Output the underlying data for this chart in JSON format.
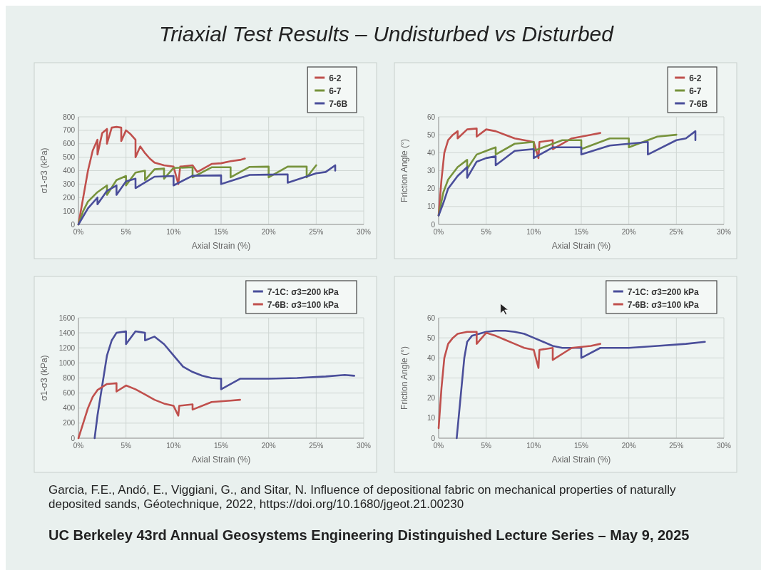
{
  "chart_data": [
    {
      "type": "line",
      "title": "Triaxial Test Results – Undisturbed vs Disturbed",
      "xlabel": "Axial Strain (%)",
      "ylabel": "σ1-σ3 (kPa)",
      "xlim": [
        0,
        30
      ],
      "xticks": [
        {
          "value": 0,
          "label": "0%"
        },
        {
          "value": 5,
          "label": "5%"
        },
        {
          "value": 10,
          "label": "10%"
        },
        {
          "value": 15,
          "label": "15%"
        },
        {
          "value": 20,
          "label": "20%"
        },
        {
          "value": 25,
          "label": "25%"
        },
        {
          "value": 30,
          "label": "30%"
        }
      ],
      "ylim": [
        0,
        800
      ],
      "yticks": [
        0,
        100,
        200,
        300,
        400,
        500,
        600,
        700,
        800
      ],
      "grid": true,
      "legend": "top right",
      "series": [
        {
          "name": "6-2",
          "color": "#c0504d",
          "x": [
            0,
            0.5,
            1,
            1.5,
            2,
            2,
            2.5,
            3,
            3,
            3.5,
            4,
            4.5,
            4.5,
            5,
            5.5,
            6,
            6,
            6.5,
            7,
            7.5,
            8,
            9,
            10,
            10.5,
            10.7,
            12,
            12.5,
            14,
            15,
            16,
            17,
            17.5
          ],
          "values": [
            0,
            200,
            400,
            550,
            630,
            520,
            680,
            710,
            600,
            720,
            725,
            720,
            620,
            700,
            670,
            630,
            500,
            580,
            530,
            490,
            460,
            440,
            430,
            300,
            430,
            440,
            390,
            450,
            455,
            470,
            480,
            490
          ]
        },
        {
          "name": "6-7",
          "color": "#77933c",
          "x": [
            0,
            0.5,
            1,
            2,
            3,
            3,
            4,
            5,
            5,
            6,
            7,
            7,
            8,
            9,
            9,
            10,
            12,
            12,
            14,
            15,
            16,
            16,
            18,
            20,
            20,
            22,
            24,
            24,
            25
          ],
          "values": [
            0,
            100,
            170,
            240,
            290,
            220,
            330,
            360,
            290,
            385,
            400,
            330,
            410,
            415,
            340,
            420,
            425,
            350,
            425,
            425,
            425,
            350,
            428,
            430,
            350,
            430,
            430,
            350,
            440
          ]
        },
        {
          "name": "7-6B",
          "color": "#4a4e9a",
          "x": [
            0,
            1,
            2,
            2,
            3,
            4,
            4,
            5,
            6,
            6,
            8,
            10,
            10,
            12,
            15,
            15,
            18,
            20,
            22,
            22,
            25,
            26,
            27,
            27
          ],
          "values": [
            0,
            120,
            200,
            150,
            250,
            290,
            220,
            320,
            340,
            270,
            355,
            360,
            290,
            362,
            365,
            300,
            368,
            370,
            372,
            310,
            380,
            390,
            440,
            400
          ]
        }
      ]
    },
    {
      "type": "line",
      "xlabel": "Axial Strain (%)",
      "ylabel": "Friction Angle (°)",
      "xlim": [
        0,
        30
      ],
      "xticks": [
        {
          "value": 0,
          "label": "0%"
        },
        {
          "value": 5,
          "label": "5%"
        },
        {
          "value": 10,
          "label": "10%"
        },
        {
          "value": 15,
          "label": "15%"
        },
        {
          "value": 20,
          "label": "20%"
        },
        {
          "value": 25,
          "label": "25%"
        },
        {
          "value": 30,
          "label": "30%"
        }
      ],
      "ylim": [
        0,
        60
      ],
      "yticks": [
        0,
        10,
        20,
        30,
        40,
        50,
        60
      ],
      "grid": true,
      "legend": "top right",
      "series": [
        {
          "name": "6-2",
          "color": "#c0504d",
          "x": [
            0,
            0.3,
            0.6,
            1,
            1.5,
            2,
            2,
            3,
            4,
            4,
            5,
            6,
            7,
            8,
            9,
            10,
            10.5,
            10.6,
            12,
            12,
            14,
            16,
            17
          ],
          "values": [
            5,
            25,
            40,
            47,
            50,
            52,
            48,
            53,
            53.5,
            49,
            53,
            52,
            50,
            48,
            47,
            46,
            37,
            46,
            47,
            42,
            48,
            50,
            51
          ]
        },
        {
          "name": "6-7",
          "color": "#77933c",
          "x": [
            0,
            0.5,
            1,
            2,
            3,
            3,
            4,
            5,
            6,
            6,
            8,
            10,
            10,
            13,
            15,
            15,
            18,
            20,
            20,
            23,
            25
          ],
          "values": [
            5,
            18,
            25,
            32,
            36,
            31,
            39,
            41,
            43,
            39,
            45,
            46,
            41,
            47,
            47,
            42,
            48,
            48,
            43,
            49,
            50
          ]
        },
        {
          "name": "7-6B",
          "color": "#4a4e9a",
          "x": [
            0,
            0.5,
            1,
            2,
            3,
            3,
            4,
            5,
            6,
            6,
            8,
            10,
            10,
            12,
            15,
            15,
            18,
            20,
            22,
            22,
            25,
            26,
            27,
            27
          ],
          "values": [
            5,
            12,
            20,
            27,
            32,
            26,
            35,
            37,
            38,
            33,
            41,
            42,
            37,
            43,
            43,
            39,
            44,
            45,
            46,
            39,
            47,
            48,
            52,
            47
          ]
        }
      ]
    },
    {
      "type": "line",
      "xlabel": "Axial Strain (%)",
      "ylabel": "σ1-σ3 (kPa)",
      "xlim": [
        0,
        30
      ],
      "xticks": [
        {
          "value": 0,
          "label": "0%"
        },
        {
          "value": 5,
          "label": "5%"
        },
        {
          "value": 10,
          "label": "10%"
        },
        {
          "value": 15,
          "label": "15%"
        },
        {
          "value": 20,
          "label": "20%"
        },
        {
          "value": 25,
          "label": "25%"
        },
        {
          "value": 30,
          "label": "30%"
        }
      ],
      "ylim": [
        0,
        1600
      ],
      "yticks": [
        0,
        200,
        400,
        600,
        800,
        1000,
        1200,
        1400,
        1600
      ],
      "grid": true,
      "legend": "top right",
      "series": [
        {
          "name": "7-1C: σ3=200 kPa",
          "color": "#4a4e9a",
          "x": [
            1.7,
            2,
            2.5,
            3,
            3.5,
            4,
            5,
            5,
            6,
            7,
            7,
            8,
            9,
            10,
            11,
            12,
            13,
            14,
            15,
            15,
            17,
            20,
            23,
            26,
            28,
            29
          ],
          "values": [
            0,
            300,
            700,
            1100,
            1300,
            1400,
            1420,
            1250,
            1420,
            1400,
            1300,
            1350,
            1250,
            1100,
            950,
            880,
            830,
            800,
            790,
            650,
            790,
            790,
            800,
            820,
            840,
            830
          ]
        },
        {
          "name": "7-6B: σ3=100 kPa",
          "color": "#c0504d",
          "x": [
            0,
            0.5,
            1,
            1.5,
            2,
            3,
            4,
            4,
            5,
            6,
            7,
            8,
            9,
            10,
            10.5,
            10.6,
            12,
            12,
            14,
            16,
            17
          ],
          "values": [
            0,
            200,
            400,
            550,
            640,
            720,
            730,
            620,
            700,
            650,
            580,
            510,
            460,
            430,
            300,
            430,
            450,
            380,
            480,
            500,
            510
          ]
        }
      ]
    },
    {
      "type": "line",
      "xlabel": "Axial Strain (%)",
      "ylabel": "Friction Angle (°)",
      "xlim": [
        0,
        30
      ],
      "xticks": [
        {
          "value": 0,
          "label": "0%"
        },
        {
          "value": 5,
          "label": "5%"
        },
        {
          "value": 10,
          "label": "10%"
        },
        {
          "value": 15,
          "label": "15%"
        },
        {
          "value": 20,
          "label": "20%"
        },
        {
          "value": 25,
          "label": "25%"
        },
        {
          "value": 30,
          "label": "30%"
        }
      ],
      "ylim": [
        0,
        60
      ],
      "yticks": [
        0,
        10,
        20,
        30,
        40,
        50,
        60
      ],
      "grid": true,
      "legend": "top right",
      "annotations": [
        "Garcia, F.E., Andó, E., Viggiani, G., and Sitar, N. Influence of depositional fabric on mechanical properties of naturally deposited sands, Géotechnique, 2022, https://doi.org/10.1680/jgeot.21.00230",
        "UC Berkeley 43rd Annual Geosystems Engineering Distinguished Lecture Series – May 9, 2025"
      ],
      "series": [
        {
          "name": "7-1C: σ3=200 kPa",
          "color": "#4a4e9a",
          "x": [
            1.9,
            2.3,
            2.7,
            3,
            3.5,
            5,
            6,
            7,
            8,
            9,
            10,
            11,
            12,
            13,
            15,
            15,
            17,
            20,
            23,
            26,
            28
          ],
          "values": [
            0,
            20,
            40,
            48,
            51,
            53,
            53.5,
            53.5,
            53,
            52,
            50,
            48,
            46,
            45,
            45,
            40,
            45,
            45,
            46,
            47,
            48
          ]
        },
        {
          "name": "7-6B: σ3=100 kPa",
          "color": "#c0504d",
          "x": [
            0,
            0.3,
            0.6,
            1,
            1.5,
            2,
            3,
            4,
            4,
            5,
            6,
            7,
            8,
            9,
            10,
            10.5,
            10.6,
            12,
            12,
            14,
            16,
            17
          ],
          "values": [
            5,
            25,
            40,
            47,
            50,
            52,
            53,
            53,
            47,
            52.5,
            51,
            49,
            47,
            45,
            44,
            35,
            44,
            45,
            39,
            45,
            46,
            47
          ]
        }
      ]
    }
  ]
}
